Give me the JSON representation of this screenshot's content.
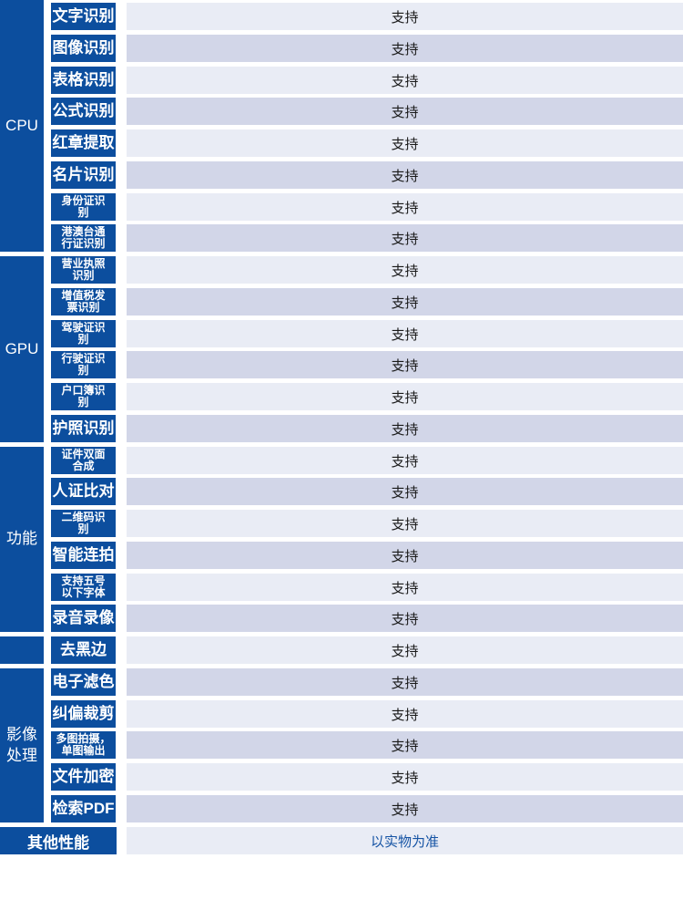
{
  "table": {
    "rows": [
      {
        "feature": "文字识别",
        "value": "支持"
      },
      {
        "feature": "图像识别",
        "value": "支持"
      },
      {
        "feature": "表格识别",
        "value": "支持"
      },
      {
        "feature": "公式识别",
        "value": "支持"
      },
      {
        "feature": "红章提取",
        "value": "支持"
      },
      {
        "feature": "名片识别",
        "value": "支持"
      },
      {
        "feature": "身份证识\n别",
        "value": "支持"
      },
      {
        "feature": "港澳台通\n行证识别",
        "value": "支持"
      },
      {
        "feature": "营业执照\n识别",
        "value": "支持"
      },
      {
        "feature": "增值税发\n票识别",
        "value": "支持"
      },
      {
        "feature": "驾驶证识\n别",
        "value": "支持"
      },
      {
        "feature": "行驶证识\n别",
        "value": "支持"
      },
      {
        "feature": "户口簿识\n别",
        "value": "支持"
      },
      {
        "feature": "护照识别",
        "value": "支持"
      },
      {
        "feature": "证件双面\n合成",
        "value": "支持"
      },
      {
        "feature": "人证比对",
        "value": "支持"
      },
      {
        "feature": "二维码识\n别",
        "value": "支持"
      },
      {
        "feature": "智能连拍",
        "value": "支持"
      },
      {
        "feature": "支持五号\n以下字体",
        "value": "支持"
      },
      {
        "feature": "录音录像",
        "value": "支持"
      },
      {
        "feature": "去黑边",
        "value": "支持"
      },
      {
        "feature": "电子滤色",
        "value": "支持"
      },
      {
        "feature": "纠偏裁剪",
        "value": "支持"
      },
      {
        "feature": "多图拍摄，\n单图输出",
        "value": "支持"
      },
      {
        "feature": "文件加密",
        "value": "支持"
      },
      {
        "feature": "检索PDF",
        "value": "支持"
      }
    ],
    "categories": [
      {
        "label": "CPU",
        "start": 1,
        "end": 8
      },
      {
        "label": "GPU",
        "start": 9,
        "end": 14
      },
      {
        "label": "功能",
        "start": 15,
        "end": 20
      },
      {
        "label": "",
        "start": 21,
        "end": 21
      },
      {
        "label": "影像\n处理",
        "start": 22,
        "end": 26
      }
    ],
    "footer": {
      "label": "其他性能",
      "value": "以实物为准"
    }
  },
  "colors": {
    "primary_blue": "#0c4e9e",
    "row_light": "#e9ecf5",
    "row_dark": "#d2d6e8",
    "value_text": "#1a1a1a",
    "footer_value_text": "#1553a4"
  }
}
